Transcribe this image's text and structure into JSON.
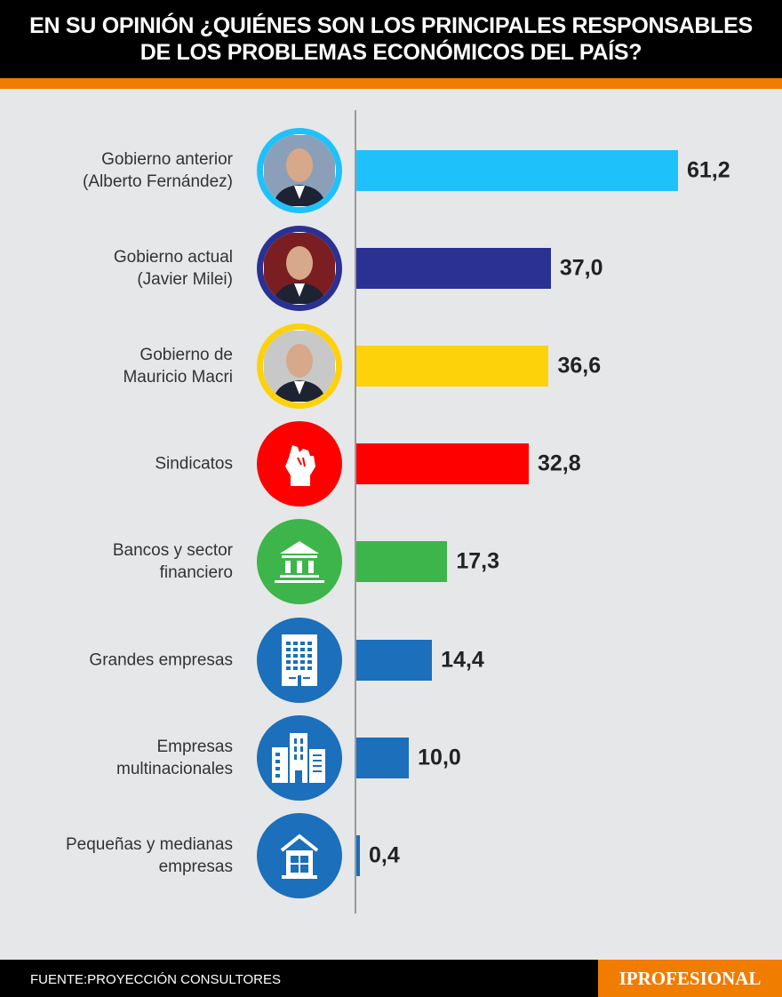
{
  "title_line1": "EN SU OPINIÓN ¿QUIÉNES SON LOS PRINCIPALES RESPONSABLES",
  "title_line2": "DE LOS PROBLEMAS ECONÓMICOS DEL PAÍS?",
  "source": "FUENTE:PROYECCIÓN CONSULTORES",
  "brand": "IPROFESIONAL",
  "chart_data": {
    "type": "bar",
    "orientation": "horizontal",
    "categories": [
      [
        "Gobierno anterior",
        "(Alberto Fernández)"
      ],
      [
        "Gobierno actual",
        "(Javier Milei)"
      ],
      [
        "Gobierno de",
        "Mauricio Macri"
      ],
      [
        "Sindicatos"
      ],
      [
        "Bancos y sector",
        "financiero"
      ],
      [
        "Grandes empresas"
      ],
      [
        "Empresas",
        "multinacionales"
      ],
      [
        "Pequeñas y medianas",
        "empresas"
      ]
    ],
    "values": [
      61.2,
      37.0,
      36.6,
      32.8,
      17.3,
      14.4,
      10.0,
      0.4
    ],
    "value_labels": [
      "61,2",
      "37,0",
      "36,6",
      "32,8",
      "17,3",
      "14,4",
      "10,0",
      "0,4"
    ],
    "colors": [
      "#1fc1fb",
      "#2b3192",
      "#fdd20a",
      "#fe0000",
      "#3db54a",
      "#1b6fbb",
      "#1b6fbb",
      "#1b6fbb"
    ],
    "icons": [
      "photo-alberto-fernandez",
      "photo-javier-milei",
      "photo-mauricio-macri",
      "fist-icon",
      "bank-icon",
      "office-building-icon",
      "city-buildings-icon",
      "house-icon"
    ]
  }
}
